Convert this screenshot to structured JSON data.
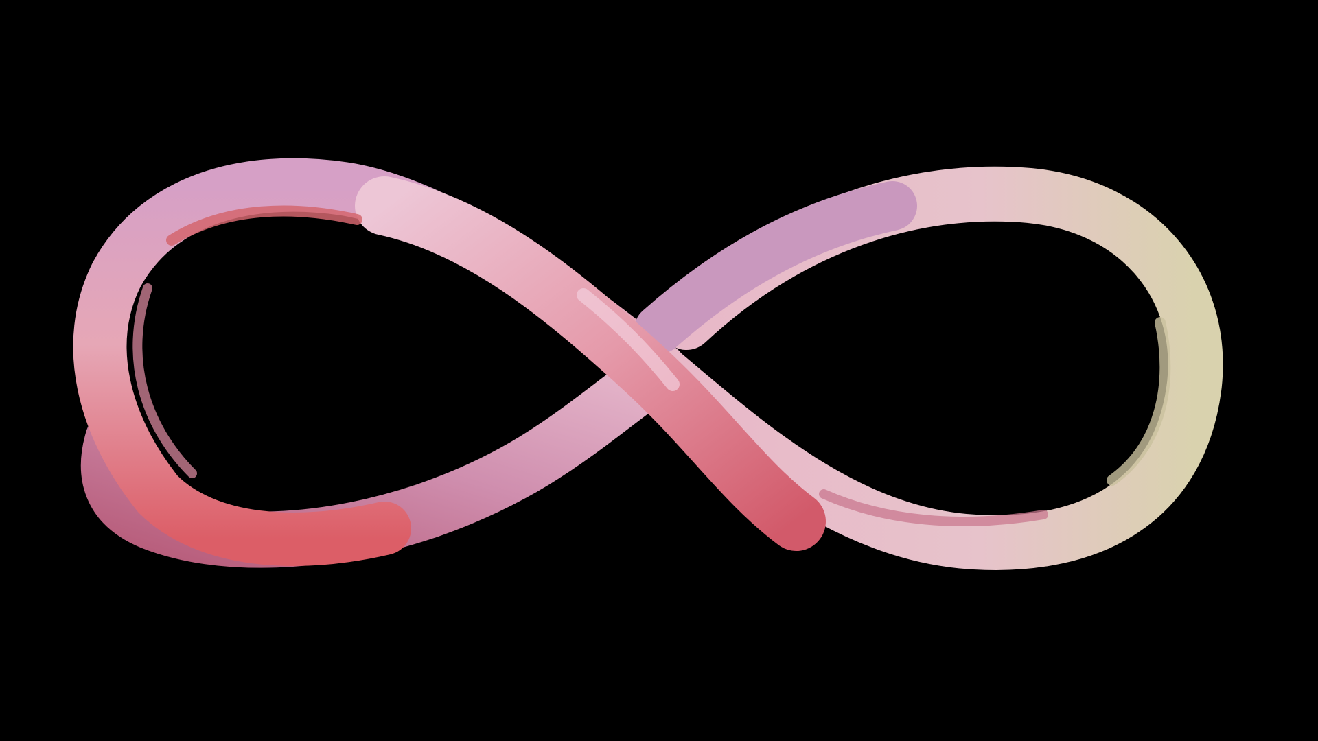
{
  "scene": {
    "background_color": "#000000",
    "subject_icon": "infinity-ribbon-icon",
    "colors": {
      "pink_light": "#EEC6D8",
      "pink_mid": "#D98AA4",
      "coral": "#D95B62",
      "rose_shadow": "#B46079",
      "cream": "#DCD3B0",
      "lavender": "#C48FB6",
      "inner_dark_pink": "#A85C7E"
    }
  }
}
